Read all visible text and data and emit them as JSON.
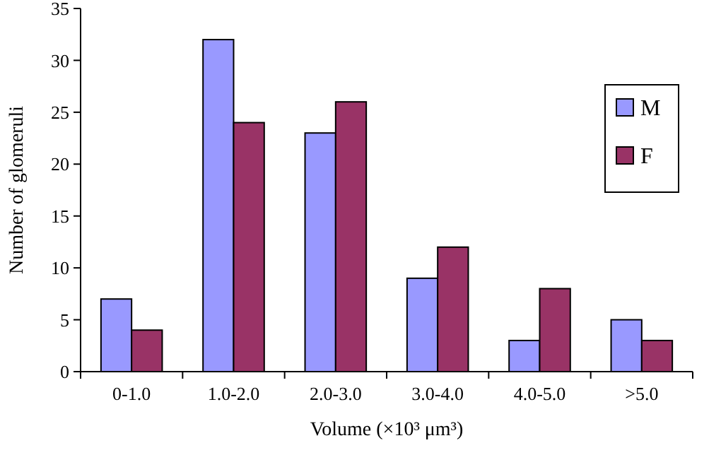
{
  "chart_data": {
    "type": "bar",
    "xlabel": "Volume (×10³ μm³)",
    "ylabel": "Number of glomeruli",
    "categories": [
      "0-1.0",
      "1.0-2.0",
      "2.0-3.0",
      "3.0-4.0",
      "4.0-5.0",
      ">5.0"
    ],
    "series": [
      {
        "name": "M",
        "color": "#9999ff",
        "values": [
          7,
          32,
          23,
          9,
          3,
          5
        ]
      },
      {
        "name": "F",
        "color": "#993366",
        "values": [
          4,
          24,
          26,
          12,
          8,
          3
        ]
      }
    ],
    "ylim": [
      0,
      35
    ],
    "yticks": [
      0,
      5,
      10,
      15,
      20,
      25,
      30,
      35
    ],
    "grid": false,
    "legend": "top right"
  }
}
